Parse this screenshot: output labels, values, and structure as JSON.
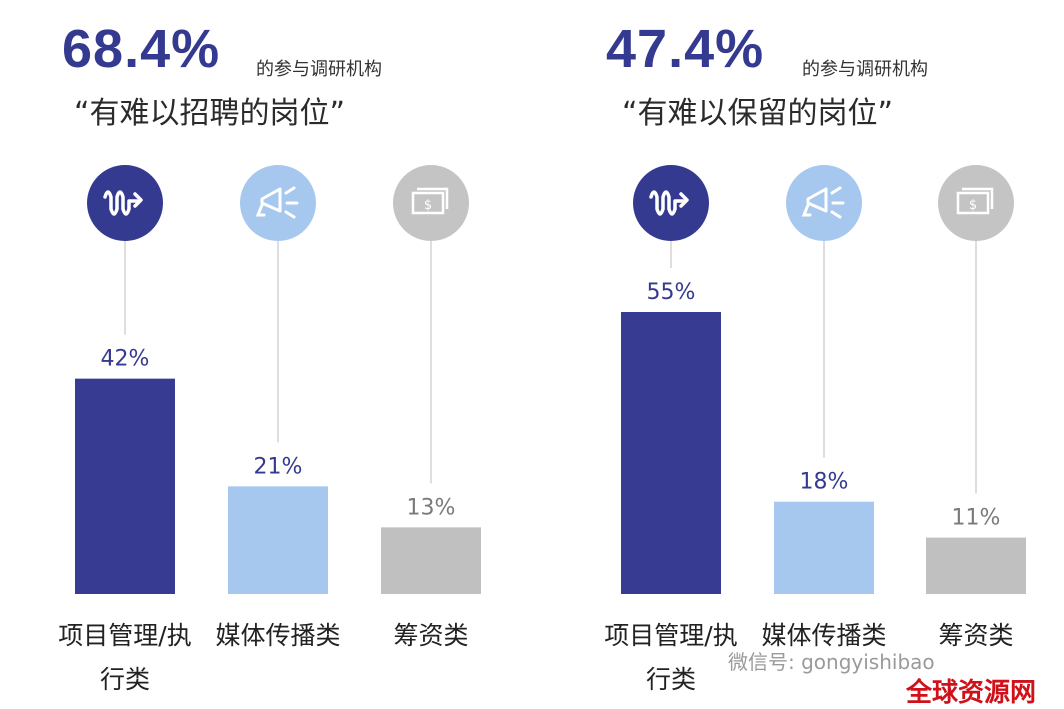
{
  "panels": [
    {
      "headline_value": "68.4%",
      "headline_suffix": "的参与调研机构",
      "subtitle": "“有难以招聘的岗位”",
      "icons": [
        "wave-arrow-icon",
        "megaphone-icon",
        "money-icon"
      ]
    },
    {
      "headline_value": "47.4%",
      "headline_suffix": "的参与调研机构",
      "subtitle": "“有难以保留的岗位”",
      "icons": [
        "wave-arrow-icon",
        "megaphone-icon",
        "money-icon"
      ]
    }
  ],
  "watermark": {
    "wechat": "微信号: gongyishibao",
    "site": "全球资源网"
  },
  "colors": {
    "dark": "#373b91",
    "light": "#a7c8ee",
    "gray": "#c0c0c0",
    "icon_dark": "#353a91",
    "icon_light": "#a7c8ee",
    "icon_gray": "#c4c4c4"
  },
  "chart_data": [
    {
      "type": "bar",
      "categories": [
        [
          "项目管理/执",
          "行类"
        ],
        [
          "媒体传播类"
        ],
        [
          "筹资类"
        ]
      ],
      "values": [
        42,
        21,
        13
      ],
      "labels": [
        "42%",
        "21%",
        "13%"
      ],
      "ylim": [
        0,
        55
      ]
    },
    {
      "type": "bar",
      "categories": [
        [
          "项目管理/执",
          "行类"
        ],
        [
          "媒体传播类"
        ],
        [
          "筹资类"
        ]
      ],
      "values": [
        55,
        18,
        11
      ],
      "labels": [
        "55%",
        "18%",
        "11%"
      ],
      "ylim": [
        0,
        55
      ]
    }
  ]
}
